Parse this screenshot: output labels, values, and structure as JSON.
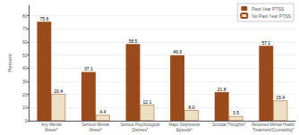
{
  "chart_data": {
    "type": "bar",
    "categories": [
      "Any Mental\nIllness*",
      "Serious Mental\nIllness*",
      "Serious Psychological\nDistress*",
      "Major Depressive\nEpisode*",
      "Suicidal Thoughts*",
      "Received Mental Health\nTreatment/Counseling*"
    ],
    "series": [
      {
        "name": "Past Year PTSS",
        "color": "#9B4A1B",
        "values": [
          75.6,
          37.1,
          58.5,
          49.9,
          21.8,
          57.1
        ]
      },
      {
        "name": "No Past Year PTSS",
        "color": "#EDE0C4",
        "values": [
          20.4,
          4.4,
          12.1,
          8.0,
          3.5,
          15.4
        ],
        "value_labels": [
          "20.4",
          "4.4",
          "12.1",
          "8.0",
          "3.5",
          "15.4"
        ]
      }
    ],
    "ylabel": "Percent",
    "ylim": [
      0,
      88
    ],
    "yticks": [
      0,
      10,
      20,
      30,
      40,
      50,
      60,
      70,
      80
    ],
    "grid": true,
    "legend": "upper right",
    "data_labels": true
  }
}
